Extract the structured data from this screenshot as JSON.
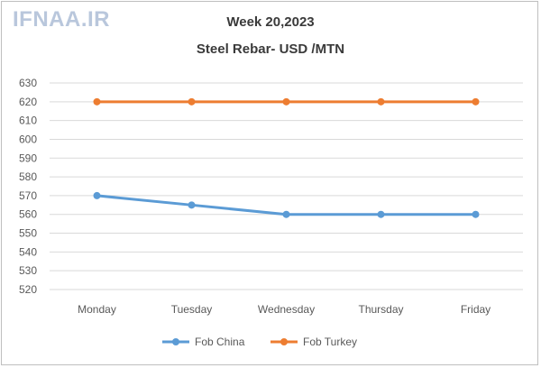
{
  "branding": {
    "logo_text": "IFNAA.IR",
    "logo_color": "#b9c7dc"
  },
  "chart_data": {
    "type": "line",
    "title": "Week 20,2023",
    "subtitle": "Steel Rebar- USD /MTN",
    "xlabel": "",
    "ylabel": "",
    "categories": [
      "Monday",
      "Tuesday",
      "Wednesday",
      "Thursday",
      "Friday"
    ],
    "series": [
      {
        "name": "Fob China",
        "values": [
          570,
          565,
          560,
          560,
          560
        ],
        "color": "#5b9bd5"
      },
      {
        "name": "Fob Turkey",
        "values": [
          620,
          620,
          620,
          620,
          620
        ],
        "color": "#ed7d31"
      }
    ],
    "ylim": [
      520,
      630
    ],
    "yticks": [
      520,
      530,
      540,
      550,
      560,
      570,
      580,
      590,
      600,
      610,
      620,
      630
    ],
    "grid": true,
    "legend_position": "bottom"
  }
}
